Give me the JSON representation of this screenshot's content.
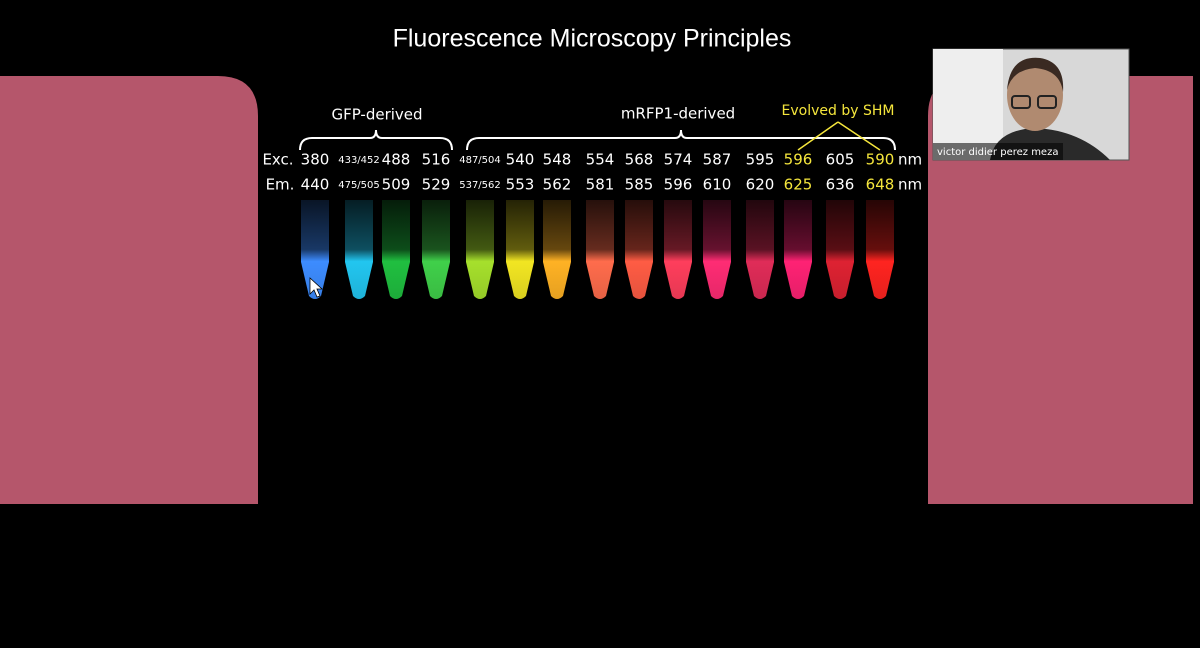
{
  "slide": {
    "title": "Fluorescence Microscopy Principles",
    "figure": {
      "groups": {
        "gfp": "GFP-derived",
        "mrfp": "mRFP1-derived",
        "evolved": "Evolved by SHM"
      },
      "row_labels": {
        "exc": "Exc.",
        "em": "Em."
      },
      "unit": "nm",
      "columns": [
        {
          "exc": 380,
          "em": 440,
          "tube_color": "#3d8cff",
          "label_color": "#ffffff"
        },
        {
          "exc": "433/452",
          "em": "475/505",
          "tube_color": "#22c6f0",
          "label_color": "#ffffff"
        },
        {
          "exc": 488,
          "em": 509,
          "tube_color": "#20bf40",
          "label_color": "#ffffff"
        },
        {
          "exc": 516,
          "em": 529,
          "tube_color": "#40d04a",
          "label_color": "#ffffff"
        },
        {
          "exc": "487/504",
          "em": "537/562",
          "tube_color": "#a6e02c",
          "label_color": "#ffffff"
        },
        {
          "exc": 540,
          "em": 553,
          "tube_color": "#f2e622",
          "label_color": "#ffffff"
        },
        {
          "exc": 548,
          "em": 562,
          "tube_color": "#ffb224",
          "label_color": "#ffffff"
        },
        {
          "exc": 554,
          "em": 581,
          "tube_color": "#ff6c4c",
          "label_color": "#ffffff"
        },
        {
          "exc": 568,
          "em": 585,
          "tube_color": "#ff5c44",
          "label_color": "#ffffff"
        },
        {
          "exc": 574,
          "em": 596,
          "tube_color": "#ff3e5c",
          "label_color": "#ffffff"
        },
        {
          "exc": 587,
          "em": 610,
          "tube_color": "#ff2c74",
          "label_color": "#ffffff"
        },
        {
          "exc": 595,
          "em": 620,
          "tube_color": "#e02c58",
          "label_color": "#ffffff"
        },
        {
          "exc": 596,
          "em": 625,
          "tube_color": "#ff2274",
          "label_color": "#f5e63c"
        },
        {
          "exc": 605,
          "em": 636,
          "tube_color": "#de2232",
          "label_color": "#ffffff"
        },
        {
          "exc": 590,
          "em": 648,
          "tube_color": "#ff2420",
          "label_color": "#f5e63c"
        }
      ]
    }
  },
  "participant": {
    "name": "victor didier perez meza"
  }
}
